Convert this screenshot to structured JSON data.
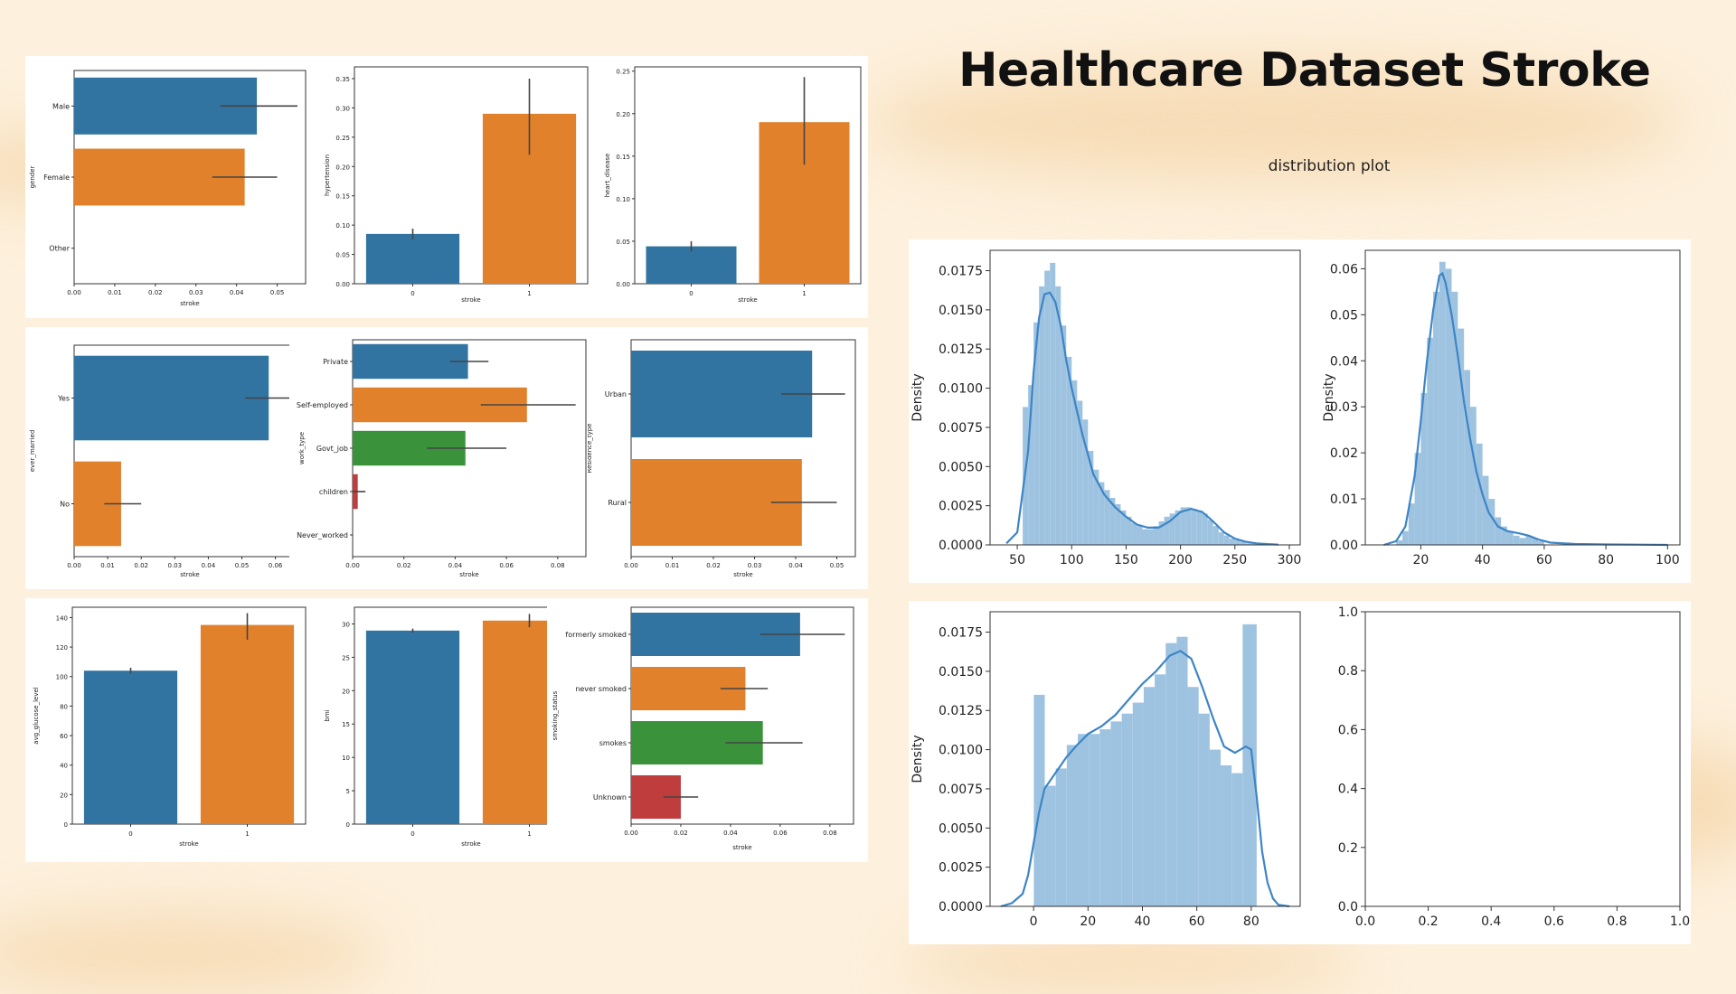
{
  "title": "Healthcare Dataset Stroke",
  "subtitle": "distribution plot",
  "colors": {
    "blue": "#3274a1",
    "orange": "#e1812c",
    "green": "#3a923a",
    "red": "#c03d3e",
    "hist": "#9ec3e0",
    "kde": "#3d85c6",
    "background": "#fdf0dc"
  },
  "chart_data": [
    {
      "type": "bar",
      "orientation": "horizontal",
      "categories": [
        "Male",
        "Female",
        "Other"
      ],
      "values": [
        0.045,
        0.042,
        0
      ],
      "err": [
        [
          0.036,
          0.055
        ],
        [
          0.034,
          0.05
        ],
        null
      ],
      "colors": [
        "#3274a1",
        "#e1812c",
        "#3a923a"
      ],
      "xlabel": "stroke",
      "ylabel": "gender",
      "xlim": [
        0,
        0.057
      ],
      "xticks": [
        "0.00",
        "0.01",
        "0.02",
        "0.03",
        "0.04",
        "0.05"
      ]
    },
    {
      "type": "bar",
      "orientation": "vertical",
      "categories": [
        "0",
        "1"
      ],
      "values": [
        0.085,
        0.29
      ],
      "err": [
        [
          0.076,
          0.094
        ],
        [
          0.22,
          0.35
        ]
      ],
      "colors": [
        "#3274a1",
        "#e1812c"
      ],
      "xlabel": "stroke",
      "ylabel": "hypertension",
      "ylim": [
        0,
        0.37
      ],
      "yticks": [
        "0.00",
        "0.05",
        "0.10",
        "0.15",
        "0.20",
        "0.25",
        "0.30",
        "0.35"
      ]
    },
    {
      "type": "bar",
      "orientation": "vertical",
      "categories": [
        "0",
        "1"
      ],
      "values": [
        0.044,
        0.19
      ],
      "err": [
        [
          0.038,
          0.05
        ],
        [
          0.14,
          0.243
        ]
      ],
      "colors": [
        "#3274a1",
        "#e1812c"
      ],
      "xlabel": "stroke",
      "ylabel": "heart_disease",
      "ylim": [
        0,
        0.255
      ],
      "yticks": [
        "0.00",
        "0.05",
        "0.10",
        "0.15",
        "0.20",
        "0.25"
      ]
    },
    {
      "type": "bar",
      "orientation": "horizontal",
      "categories": [
        "Yes",
        "No"
      ],
      "values": [
        0.058,
        0.014
      ],
      "err": [
        [
          0.051,
          0.066
        ],
        [
          0.009,
          0.02
        ]
      ],
      "colors": [
        "#3274a1",
        "#e1812c"
      ],
      "xlabel": "stroke",
      "ylabel": "ever_married",
      "xlim": [
        0,
        0.069
      ],
      "xticks": [
        "0.00",
        "0.01",
        "0.02",
        "0.03",
        "0.04",
        "0.05",
        "0.06"
      ]
    },
    {
      "type": "bar",
      "orientation": "horizontal",
      "categories": [
        "Private",
        "Self-employed",
        "Govt_job",
        "children",
        "Never_worked"
      ],
      "values": [
        0.045,
        0.068,
        0.044,
        0.002,
        0
      ],
      "err": [
        [
          0.038,
          0.053
        ],
        [
          0.05,
          0.087
        ],
        [
          0.029,
          0.06
        ],
        [
          0,
          0.005
        ],
        null
      ],
      "colors": [
        "#3274a1",
        "#e1812c",
        "#3a923a",
        "#c03d3e",
        "#9372b2"
      ],
      "xlabel": "stroke",
      "ylabel": "work_type",
      "xlim": [
        0,
        0.091
      ],
      "xticks": [
        "0.00",
        "0.02",
        "0.04",
        "0.06",
        "0.08"
      ]
    },
    {
      "type": "bar",
      "orientation": "horizontal",
      "categories": [
        "Urban",
        "Rural"
      ],
      "values": [
        0.044,
        0.0415
      ],
      "err": [
        [
          0.0365,
          0.052
        ],
        [
          0.034,
          0.05
        ]
      ],
      "colors": [
        "#3274a1",
        "#e1812c"
      ],
      "xlabel": "stroke",
      "ylabel": "Residence_type",
      "xlim": [
        0,
        0.0545
      ],
      "xticks": [
        "0.00",
        "0.01",
        "0.02",
        "0.03",
        "0.04",
        "0.05"
      ]
    },
    {
      "type": "bar",
      "orientation": "vertical",
      "categories": [
        "0",
        "1"
      ],
      "values": [
        104,
        135
      ],
      "err": [
        [
          102,
          106
        ],
        [
          125,
          143
        ]
      ],
      "colors": [
        "#3274a1",
        "#e1812c"
      ],
      "xlabel": "stroke",
      "ylabel": "avg_glucose_level",
      "ylim": [
        0,
        147
      ],
      "yticks": [
        "0",
        "20",
        "40",
        "60",
        "80",
        "100",
        "120",
        "140"
      ]
    },
    {
      "type": "bar",
      "orientation": "vertical",
      "categories": [
        "0",
        "1"
      ],
      "values": [
        29,
        30.5
      ],
      "err": [
        [
          28.7,
          29.3
        ],
        [
          29.5,
          31.5
        ]
      ],
      "colors": [
        "#3274a1",
        "#e1812c"
      ],
      "xlabel": "stroke",
      "ylabel": "bmi",
      "ylim": [
        0,
        32.5
      ],
      "yticks": [
        "0",
        "5",
        "10",
        "15",
        "20",
        "25",
        "30"
      ]
    },
    {
      "type": "bar",
      "orientation": "horizontal",
      "categories": [
        "formerly smoked",
        "never smoked",
        "smokes",
        "Unknown"
      ],
      "values": [
        0.068,
        0.046,
        0.053,
        0.02
      ],
      "err": [
        [
          0.052,
          0.086
        ],
        [
          0.036,
          0.055
        ],
        [
          0.038,
          0.069
        ],
        [
          0.013,
          0.027
        ]
      ],
      "colors": [
        "#3274a1",
        "#e1812c",
        "#3a923a",
        "#c03d3e"
      ],
      "xlabel": "stroke",
      "ylabel": "smoking_status",
      "xlim": [
        0,
        0.0895
      ],
      "xticks": [
        "0.00",
        "0.02",
        "0.04",
        "0.06",
        "0.08"
      ]
    },
    {
      "type": "area",
      "subtype": "histogram+kde",
      "xlabel": "",
      "ylabel": "Density",
      "xlim": [
        25,
        310
      ],
      "ylim": [
        0,
        0.0188
      ],
      "xticks": [
        50,
        100,
        150,
        200,
        250,
        300
      ],
      "yticks": [
        "0.0000",
        "0.0025",
        "0.0050",
        "0.0075",
        "0.0100",
        "0.0125",
        "0.0150",
        "0.0175"
      ],
      "hist_bin_edges": [
        55,
        60,
        65,
        70,
        75,
        80,
        85,
        90,
        95,
        100,
        105,
        110,
        115,
        120,
        125,
        130,
        135,
        140,
        145,
        150,
        155,
        160,
        165,
        170,
        175,
        180,
        185,
        190,
        195,
        200,
        205,
        210,
        215,
        220,
        225,
        230,
        235,
        240,
        245,
        250,
        255,
        260,
        265,
        270
      ],
      "hist_values": [
        0.0088,
        0.0102,
        0.0142,
        0.0165,
        0.0175,
        0.018,
        0.0165,
        0.014,
        0.012,
        0.0105,
        0.0092,
        0.008,
        0.006,
        0.0048,
        0.004,
        0.0035,
        0.003,
        0.0026,
        0.0022,
        0.0018,
        0.0014,
        0.0012,
        0.001,
        0.001,
        0.0012,
        0.0015,
        0.0018,
        0.002,
        0.0022,
        0.0024,
        0.0024,
        0.0023,
        0.0022,
        0.002,
        0.0016,
        0.0012,
        0.0008,
        0.0006,
        0.0004,
        0.0003,
        0.0002,
        0.0001,
        0.0001
      ],
      "kde_x": [
        40,
        50,
        60,
        65,
        70,
        75,
        80,
        85,
        90,
        95,
        100,
        105,
        110,
        120,
        130,
        140,
        150,
        160,
        170,
        180,
        190,
        200,
        210,
        220,
        230,
        240,
        250,
        260,
        270,
        280,
        290
      ],
      "kde_y": [
        0.0001,
        0.0008,
        0.006,
        0.011,
        0.0145,
        0.016,
        0.0161,
        0.0155,
        0.014,
        0.0118,
        0.01,
        0.0085,
        0.007,
        0.0045,
        0.0032,
        0.0024,
        0.0018,
        0.0013,
        0.0011,
        0.0011,
        0.0015,
        0.0021,
        0.0023,
        0.0021,
        0.0015,
        0.0008,
        0.0004,
        0.0002,
        0.0001,
        5e-05,
        2e-05
      ]
    },
    {
      "type": "area",
      "subtype": "histogram+kde",
      "xlabel": "",
      "ylabel": "Density",
      "xlim": [
        2,
        104
      ],
      "ylim": [
        0,
        0.064
      ],
      "xticks": [
        20,
        40,
        60,
        80,
        100
      ],
      "yticks": [
        "0.00",
        "0.01",
        "0.02",
        "0.03",
        "0.04",
        "0.05",
        "0.06"
      ],
      "hist_bin_edges": [
        12,
        14,
        16,
        18,
        20,
        22,
        24,
        26,
        28,
        30,
        32,
        34,
        36,
        38,
        40,
        42,
        44,
        46,
        48,
        50,
        52,
        54,
        56,
        58,
        60
      ],
      "hist_values": [
        0.001,
        0.003,
        0.009,
        0.02,
        0.033,
        0.045,
        0.055,
        0.0615,
        0.06,
        0.055,
        0.047,
        0.038,
        0.03,
        0.022,
        0.015,
        0.01,
        0.006,
        0.004,
        0.003,
        0.002,
        0.0015,
        0.002,
        0.0015,
        0.0008
      ],
      "kde_x": [
        8,
        12,
        15,
        18,
        20,
        22,
        24,
        26,
        27,
        28,
        30,
        32,
        34,
        36,
        38,
        40,
        42,
        45,
        48,
        52,
        55,
        58,
        62,
        70,
        80,
        90,
        100
      ],
      "kde_y": [
        0,
        0.0008,
        0.004,
        0.015,
        0.027,
        0.04,
        0.051,
        0.0585,
        0.059,
        0.057,
        0.05,
        0.041,
        0.031,
        0.023,
        0.016,
        0.011,
        0.007,
        0.004,
        0.003,
        0.0025,
        0.002,
        0.0012,
        0.0005,
        0.0002,
        0.0001,
        5e-05,
        0
      ]
    },
    {
      "type": "area",
      "subtype": "histogram+kde",
      "xlabel": "",
      "ylabel": "Density",
      "xlim": [
        -16,
        98
      ],
      "ylim": [
        0,
        0.0188
      ],
      "xticks": [
        0,
        20,
        40,
        60,
        80
      ],
      "yticks": [
        "0.0000",
        "0.0025",
        "0.0050",
        "0.0075",
        "0.0100",
        "0.0125",
        "0.0150",
        "0.0175"
      ],
      "hist_bin_edges": [
        0.08,
        4.12,
        8.16,
        12.2,
        16.24,
        20.28,
        24.32,
        28.36,
        32.4,
        36.44,
        40.48,
        44.52,
        48.56,
        52.6,
        56.64,
        60.68,
        64.72,
        68.76,
        72.8,
        76.84,
        82
      ],
      "hist_values": [
        0.0135,
        0.0077,
        0.0088,
        0.0103,
        0.011,
        0.011,
        0.0113,
        0.0118,
        0.0123,
        0.013,
        0.014,
        0.0148,
        0.0168,
        0.0172,
        0.014,
        0.0123,
        0.01,
        0.009,
        0.0085,
        0.018
      ],
      "kde_x": [
        -12,
        -8,
        -4,
        -2,
        0,
        2,
        4,
        8,
        12,
        16,
        20,
        25,
        30,
        35,
        40,
        45,
        50,
        54,
        58,
        62,
        66,
        70,
        74,
        78,
        80,
        82,
        84,
        86,
        88,
        90,
        94
      ],
      "kde_y": [
        0.0,
        0.0002,
        0.0008,
        0.002,
        0.004,
        0.006,
        0.0075,
        0.0085,
        0.0095,
        0.0103,
        0.011,
        0.0115,
        0.0122,
        0.0132,
        0.0142,
        0.015,
        0.016,
        0.0163,
        0.0158,
        0.014,
        0.012,
        0.0102,
        0.0098,
        0.0102,
        0.01,
        0.007,
        0.0035,
        0.0015,
        0.0005,
        0.0001,
        0.0
      ]
    },
    {
      "type": "line",
      "xlabel": "",
      "ylabel": "",
      "xlim": [
        0,
        1
      ],
      "ylim": [
        0,
        1
      ],
      "xticks": [
        "0.0",
        "0.2",
        "0.4",
        "0.6",
        "0.8",
        "1.0"
      ],
      "yticks": [
        "0.0",
        "0.2",
        "0.4",
        "0.6",
        "0.8",
        "1.0"
      ],
      "series": []
    }
  ]
}
